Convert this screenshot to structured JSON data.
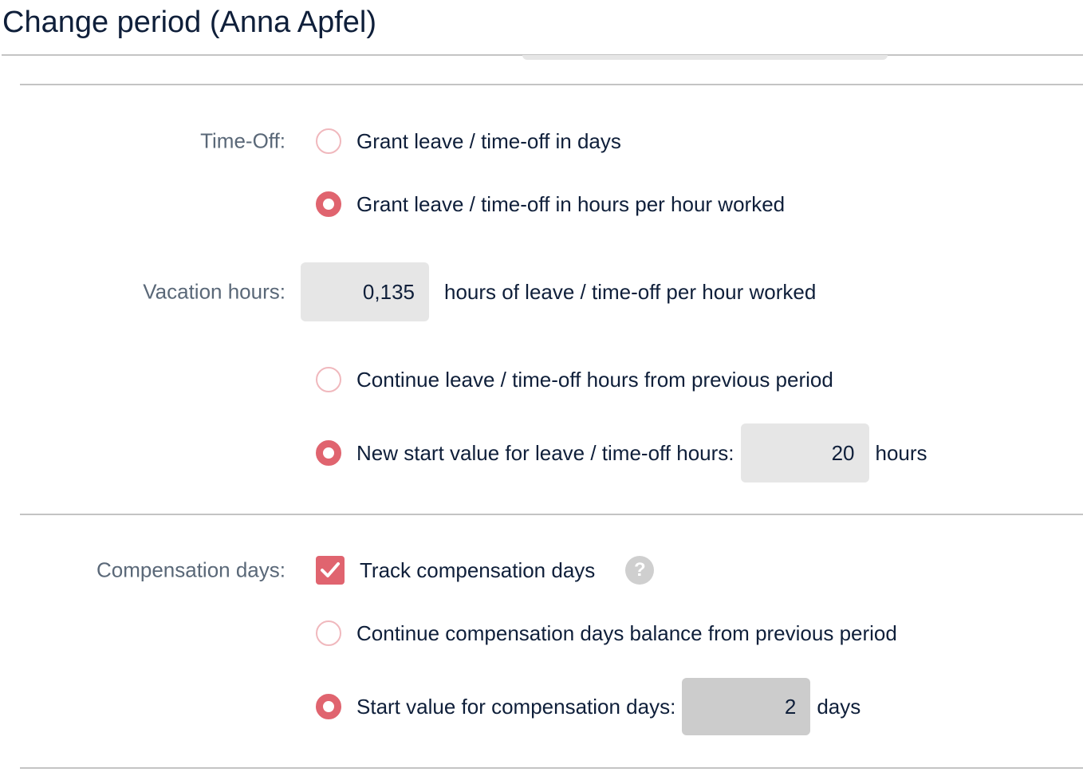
{
  "header": {
    "title": "Change period (Anna Apfel)"
  },
  "colors": {
    "accent": "#e0646f",
    "input_bg": "#e6e6e6",
    "focused_input_bg": "#cccccc"
  },
  "time_off": {
    "label": "Time-Off:",
    "option_days": "Grant leave / time-off in days",
    "option_hours": "Grant leave / time-off in hours per hour worked",
    "selected": "option_hours"
  },
  "vacation": {
    "label": "Vacation hours:",
    "value": "0,135",
    "suffix": "hours of leave / time-off per hour worked",
    "option_continue": "Continue leave / time-off hours from previous period",
    "option_new_start": "New start value for leave / time-off hours:",
    "new_start_value": "20",
    "new_start_unit": "hours",
    "selected": "option_new_start"
  },
  "compensation": {
    "label": "Compensation days:",
    "track_label": "Track compensation days",
    "track_checked": true,
    "help_icon": "?",
    "option_continue": "Continue compensation days balance from previous period",
    "option_start": "Start value for compensation days:",
    "start_value": "2",
    "start_unit": "days",
    "selected": "option_start"
  }
}
